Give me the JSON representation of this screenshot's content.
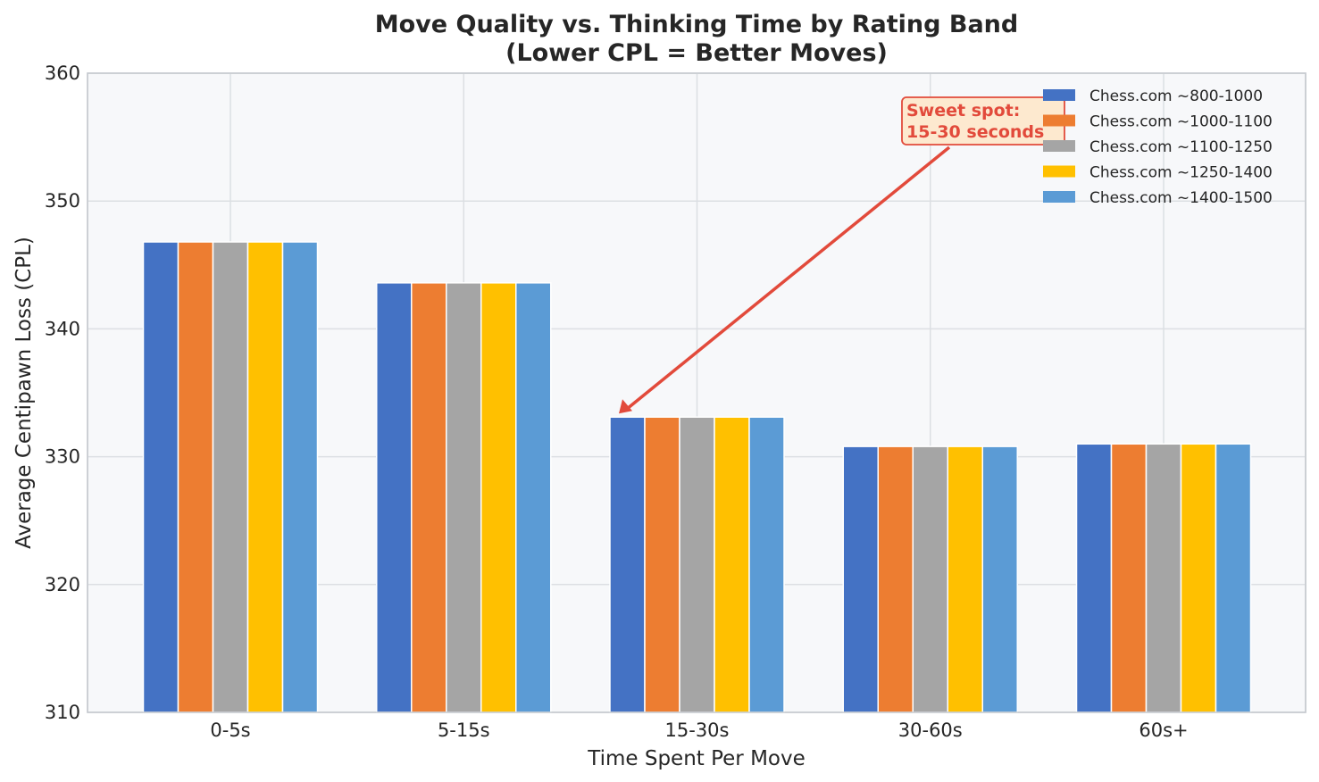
{
  "chart_data": {
    "type": "bar",
    "title_line1": "Move Quality vs. Thinking Time by Rating Band",
    "title_line2": "(Lower CPL = Better Moves)",
    "xlabel": "Time Spent Per Move",
    "ylabel": "Average Centipawn Loss (CPL)",
    "ylim": [
      310,
      360
    ],
    "yticks": [
      "310",
      "320",
      "330",
      "340",
      "350",
      "360"
    ],
    "grid": true,
    "legend_position": "top-right",
    "categories": [
      "0-5s",
      "5-15s",
      "15-30s",
      "30-60s",
      "60s+"
    ],
    "series": [
      {
        "name": "Chess.com ~800-1000",
        "color": "#4472c4",
        "values": [
          346.8,
          343.6,
          333.1,
          330.8,
          331.0
        ]
      },
      {
        "name": "Chess.com ~1000-1100",
        "color": "#ed7d31",
        "values": [
          346.8,
          343.6,
          333.1,
          330.8,
          331.0
        ]
      },
      {
        "name": "Chess.com ~1100-1250",
        "color": "#a5a5a5",
        "values": [
          346.8,
          343.6,
          333.1,
          330.8,
          331.0
        ]
      },
      {
        "name": "Chess.com ~1250-1400",
        "color": "#ffc000",
        "values": [
          346.8,
          343.6,
          333.1,
          330.8,
          331.0
        ]
      },
      {
        "name": "Chess.com ~1400-1500",
        "color": "#5b9bd5",
        "values": [
          346.8,
          343.6,
          333.1,
          330.8,
          331.0
        ]
      }
    ],
    "annotation": {
      "line1": "Sweet spot:",
      "line2": "15-30 seconds",
      "target_category": "15-30s",
      "color": "#e24a3b"
    }
  }
}
